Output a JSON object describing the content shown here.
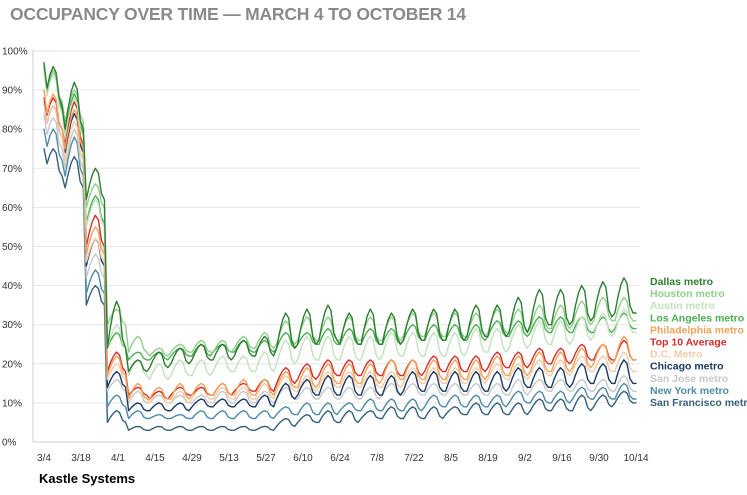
{
  "chart_data": {
    "type": "line",
    "title": "OCCUPANCY OVER TIME — MARCH 4 TO OCTOBER 14",
    "source": "Kastle Systems",
    "xlabel": "",
    "ylabel": "",
    "ylim": [
      0,
      100
    ],
    "grid": true,
    "legend_placement": "right",
    "y_ticks": [
      "0%",
      "10%",
      "20%",
      "30%",
      "40%",
      "50%",
      "60%",
      "70%",
      "80%",
      "90%",
      "100%"
    ],
    "x_ticks": [
      "3/4",
      "3/18",
      "4/1",
      "4/15",
      "4/29",
      "5/13",
      "5/27",
      "6/10",
      "6/24",
      "7/8",
      "7/22",
      "8/5",
      "8/19",
      "9/2",
      "9/16",
      "9/30",
      "10/14"
    ],
    "series": [
      {
        "name": "Dallas metro",
        "color": "#2e7d32",
        "start": 97,
        "peaks": [
          96,
          92,
          70,
          36,
          21,
          23,
          24,
          25,
          25,
          26,
          27,
          33,
          34,
          35,
          33,
          34,
          33,
          34,
          34,
          34,
          35,
          35,
          37,
          39,
          39,
          40,
          41,
          42
        ],
        "troughs": [
          86,
          80,
          62,
          24,
          18,
          19,
          20,
          21,
          21,
          22,
          22,
          24,
          25,
          26,
          25,
          25,
          25,
          26,
          26,
          26,
          27,
          27,
          28,
          30,
          30,
          31,
          32,
          33
        ]
      },
      {
        "name": "Houston metro",
        "color": "#8fcf8b",
        "start": 96,
        "peaks": [
          95,
          90,
          66,
          34,
          27,
          24,
          25,
          26,
          26,
          27,
          28,
          31,
          32,
          32,
          32,
          32,
          32,
          33,
          33,
          33,
          33,
          34,
          34,
          35,
          35,
          36,
          37,
          37
        ],
        "troughs": [
          87,
          82,
          60,
          30,
          23,
          22,
          23,
          23,
          23,
          24,
          24,
          25,
          26,
          26,
          26,
          26,
          26,
          27,
          27,
          27,
          27,
          28,
          28,
          29,
          29,
          30,
          31,
          31
        ]
      },
      {
        "name": "Austin metro",
        "color": "#c2e2bd",
        "start": 95,
        "peaks": [
          94,
          88,
          62,
          30,
          21,
          20,
          21,
          21,
          22,
          22,
          23,
          26,
          27,
          27,
          27,
          27,
          28,
          28,
          28,
          28,
          29,
          29,
          30,
          31,
          31,
          32,
          33,
          34
        ],
        "troughs": [
          84,
          78,
          55,
          24,
          17,
          16,
          17,
          17,
          18,
          18,
          18,
          20,
          21,
          21,
          21,
          21,
          22,
          22,
          22,
          22,
          23,
          23,
          24,
          25,
          25,
          26,
          27,
          28
        ]
      },
      {
        "name": "Los Angeles metro",
        "color": "#4caf50",
        "start": 96,
        "peaks": [
          95,
          89,
          63,
          28,
          23,
          23,
          24,
          25,
          25,
          26,
          26,
          28,
          28,
          29,
          29,
          29,
          29,
          30,
          30,
          30,
          30,
          31,
          31,
          32,
          32,
          32,
          32,
          33
        ],
        "troughs": [
          85,
          79,
          56,
          24,
          21,
          21,
          22,
          22,
          23,
          23,
          23,
          24,
          25,
          25,
          25,
          25,
          25,
          26,
          26,
          26,
          26,
          27,
          27,
          28,
          28,
          28,
          28,
          29
        ]
      },
      {
        "name": "Philadelphia metro",
        "color": "#f0a35a",
        "start": 90,
        "peaks": [
          89,
          85,
          55,
          22,
          15,
          14,
          15,
          15,
          15,
          16,
          16,
          18,
          19,
          20,
          20,
          20,
          21,
          21,
          21,
          21,
          21,
          22,
          22,
          23,
          23,
          24,
          25,
          27
        ],
        "troughs": [
          80,
          75,
          48,
          17,
          11,
          11,
          11,
          12,
          12,
          12,
          12,
          14,
          14,
          15,
          15,
          15,
          16,
          16,
          16,
          16,
          16,
          17,
          17,
          18,
          18,
          19,
          20,
          21
        ]
      },
      {
        "name": "Top 10 Average",
        "color": "#d32f2f",
        "start": 88,
        "peaks": [
          88,
          87,
          58,
          23,
          14,
          13,
          14,
          14,
          15,
          15,
          16,
          19,
          20,
          21,
          21,
          21,
          21,
          21,
          22,
          22,
          22,
          23,
          23,
          24,
          24,
          25,
          25,
          26
        ],
        "troughs": [
          80,
          76,
          50,
          18,
          12,
          11,
          12,
          12,
          12,
          13,
          13,
          15,
          16,
          17,
          17,
          17,
          17,
          17,
          18,
          18,
          18,
          19,
          19,
          20,
          20,
          21,
          21,
          21
        ]
      },
      {
        "name": "D.C. Metro",
        "color": "#f5cba7",
        "start": 87,
        "peaks": [
          86,
          82,
          52,
          20,
          14,
          13,
          13,
          14,
          14,
          14,
          15,
          17,
          17,
          18,
          18,
          18,
          18,
          19,
          19,
          19,
          19,
          20,
          20,
          21,
          21,
          22,
          22,
          23
        ],
        "troughs": [
          78,
          72,
          46,
          16,
          11,
          10,
          10,
          11,
          11,
          11,
          11,
          13,
          13,
          14,
          14,
          14,
          14,
          15,
          15,
          15,
          15,
          16,
          16,
          17,
          17,
          18,
          18,
          18
        ]
      },
      {
        "name": "Chicago metro",
        "color": "#1a3a63",
        "start": 87,
        "peaks": [
          86,
          84,
          52,
          18,
          10,
          10,
          10,
          11,
          11,
          11,
          12,
          15,
          16,
          17,
          17,
          17,
          17,
          18,
          18,
          18,
          18,
          18,
          19,
          19,
          19,
          20,
          20,
          21
        ],
        "troughs": [
          78,
          74,
          45,
          14,
          8,
          8,
          8,
          9,
          9,
          9,
          9,
          11,
          12,
          12,
          12,
          12,
          12,
          13,
          13,
          13,
          13,
          13,
          14,
          14,
          14,
          15,
          15,
          15
        ]
      },
      {
        "name": "San Jose metro",
        "color": "#c8c8c8",
        "start": 84,
        "peaks": [
          83,
          80,
          48,
          16,
          13,
          12,
          12,
          12,
          13,
          13,
          13,
          14,
          14,
          14,
          14,
          14,
          15,
          15,
          15,
          15,
          15,
          15,
          16,
          16,
          16,
          16,
          16,
          17
        ],
        "troughs": [
          75,
          70,
          42,
          13,
          10,
          10,
          10,
          10,
          10,
          10,
          10,
          11,
          11,
          11,
          11,
          11,
          12,
          12,
          12,
          12,
          12,
          12,
          12,
          13,
          13,
          13,
          13,
          13
        ]
      },
      {
        "name": "New York metro",
        "color": "#4f8aa8",
        "start": 80,
        "peaks": [
          80,
          78,
          44,
          12,
          8,
          7,
          7,
          8,
          8,
          8,
          8,
          9,
          10,
          10,
          10,
          11,
          11,
          11,
          12,
          12,
          12,
          12,
          13,
          13,
          13,
          14,
          14,
          15
        ],
        "troughs": [
          72,
          68,
          38,
          9,
          6,
          6,
          6,
          6,
          6,
          6,
          6,
          7,
          7,
          7,
          8,
          8,
          8,
          8,
          9,
          9,
          9,
          9,
          10,
          10,
          10,
          11,
          11,
          11
        ]
      },
      {
        "name": "San Francisco metro",
        "color": "#35607c",
        "start": 75,
        "peaks": [
          75,
          73,
          40,
          8,
          4,
          4,
          4,
          4,
          4,
          4,
          4,
          6,
          7,
          8,
          8,
          8,
          9,
          9,
          9,
          9,
          10,
          10,
          10,
          11,
          11,
          12,
          12,
          13
        ],
        "troughs": [
          68,
          65,
          35,
          5,
          3,
          3,
          3,
          3,
          3,
          3,
          3,
          4,
          5,
          5,
          5,
          6,
          6,
          6,
          6,
          7,
          7,
          7,
          7,
          8,
          8,
          8,
          9,
          10
        ]
      }
    ]
  }
}
